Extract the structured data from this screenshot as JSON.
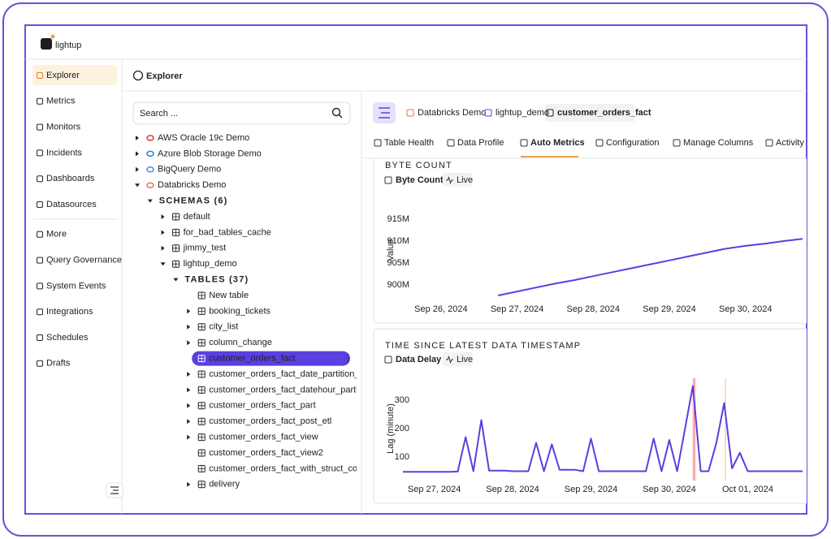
{
  "logo": "lightup",
  "sidebar": {
    "items": [
      "Explorer",
      "Metrics",
      "Monitors",
      "Incidents",
      "Dashboards",
      "Datasources",
      "More",
      "Query Governance",
      "System Events",
      "Integrations",
      "Schedules",
      "Drafts"
    ],
    "active": 0
  },
  "header": {
    "title": "Explorer"
  },
  "tree": {
    "search_placeholder": "Search ...",
    "nodes": [
      {
        "label": "AWS Oracle 19c Demo",
        "kind": "datasource",
        "color": "#e03a2f",
        "expanded": false
      },
      {
        "label": "Azure Blob Storage Demo",
        "kind": "datasource",
        "color": "#2a7de1",
        "expanded": false
      },
      {
        "label": "BigQuery Demo",
        "kind": "datasource",
        "color": "#4285f4",
        "expanded": false
      },
      {
        "label": "Databricks Demo",
        "kind": "datasource",
        "color": "#e8704a",
        "expanded": true,
        "children": [
          {
            "label": "SCHEMAS (6)",
            "kind": "group",
            "expanded": true,
            "children": [
              {
                "label": "default",
                "kind": "schema",
                "expanded": false
              },
              {
                "label": "for_bad_tables_cache",
                "kind": "schema",
                "expanded": false
              },
              {
                "label": "jimmy_test",
                "kind": "schema",
                "expanded": false
              },
              {
                "label": "lightup_demo",
                "kind": "schema",
                "expanded": true,
                "children": [
                  {
                    "label": "TABLES (37)",
                    "kind": "group",
                    "expanded": true,
                    "children": [
                      {
                        "label": "New table",
                        "kind": "table"
                      },
                      {
                        "label": "booking_tickets",
                        "kind": "table",
                        "expanded": false
                      },
                      {
                        "label": "city_list",
                        "kind": "table",
                        "expanded": false
                      },
                      {
                        "label": "column_change",
                        "kind": "table",
                        "expanded": false
                      },
                      {
                        "label": "customer_orders_fact",
                        "kind": "table",
                        "expanded": false,
                        "selected": true
                      },
                      {
                        "label": "customer_orders_fact_date_partition_pacific_tz",
                        "kind": "table",
                        "expanded": false
                      },
                      {
                        "label": "customer_orders_fact_datehour_partition_pacifi",
                        "kind": "table",
                        "expanded": false
                      },
                      {
                        "label": "customer_orders_fact_part",
                        "kind": "table",
                        "expanded": false
                      },
                      {
                        "label": "customer_orders_fact_post_etl",
                        "kind": "table",
                        "expanded": false
                      },
                      {
                        "label": "customer_orders_fact_view",
                        "kind": "table",
                        "expanded": false
                      },
                      {
                        "label": "customer_orders_fact_view2",
                        "kind": "table"
                      },
                      {
                        "label": "customer_orders_fact_with_struct_col",
                        "kind": "table"
                      },
                      {
                        "label": "delivery",
                        "kind": "table",
                        "expanded": false
                      }
                    ]
                  }
                ]
              }
            ]
          }
        ]
      }
    ]
  },
  "breadcrumb": [
    "Databricks Demo",
    "lightup_demo",
    "customer_orders_fact"
  ],
  "tabs": {
    "items": [
      "Table Health",
      "Data Profile",
      "Auto Metrics",
      "Configuration",
      "Manage Columns",
      "Activity"
    ],
    "active": 2
  },
  "chart_data": [
    {
      "type": "line",
      "section": "BYTE COUNT",
      "title": "Byte Count",
      "badge": "Live",
      "y_label": "Value",
      "color": "#5b3fe0",
      "categories": [
        null,
        null,
        "Sep 26, 2024",
        null,
        null,
        null,
        "Sep 27, 2024",
        null,
        null,
        null,
        "Sep 28, 2024",
        null,
        null,
        null,
        "Sep 29, 2024",
        null,
        null,
        null,
        "Sep 30, 2024",
        null,
        null,
        null
      ],
      "values": [
        null,
        null,
        null,
        null,
        null,
        897600000,
        898500000,
        899400000,
        900300000,
        901100000,
        902000000,
        902900000,
        903800000,
        904700000,
        905600000,
        906500000,
        907400000,
        908300000,
        908900000,
        909400000,
        910000000,
        910500000
      ],
      "ylim": [
        896000000,
        919000000
      ],
      "yticks": [
        {
          "value": 900000000,
          "label": "900M"
        },
        {
          "value": 905000000,
          "label": "905M"
        },
        {
          "value": 910000000,
          "label": "910M"
        },
        {
          "value": 915000000,
          "label": "915M"
        }
      ]
    },
    {
      "type": "line",
      "section": "TIME SINCE LATEST DATA TIMESTAMP",
      "title": "Data Delay",
      "badge": "Live",
      "y_label": "Lag (minute)",
      "color": "#5b3fe0",
      "categories": [
        null,
        null,
        null,
        null,
        "Sep 27, 2024",
        null,
        null,
        null,
        null,
        null,
        null,
        null,
        null,
        null,
        "Sep 28, 2024",
        null,
        null,
        null,
        null,
        null,
        null,
        null,
        null,
        null,
        "Sep 29, 2024",
        null,
        null,
        null,
        null,
        null,
        null,
        null,
        null,
        null,
        "Sep 30, 2024",
        null,
        null,
        null,
        null,
        null,
        null,
        null,
        null,
        null,
        "Oct 01, 2024",
        null,
        null,
        null,
        null,
        null,
        null,
        null
      ],
      "values": [
        48,
        48,
        48,
        48,
        48,
        48,
        48,
        49,
        170,
        50,
        230,
        52,
        52,
        52,
        50,
        50,
        50,
        150,
        50,
        145,
        55,
        55,
        55,
        50,
        165,
        50,
        50,
        50,
        50,
        50,
        50,
        50,
        165,
        50,
        160,
        50,
        200,
        350,
        50,
        50,
        150,
        290,
        60,
        115,
        50,
        50,
        50,
        50,
        50,
        50,
        50,
        50
      ],
      "ylim": [
        20,
        365
      ],
      "yticks": [
        100,
        200,
        300
      ]
    }
  ]
}
